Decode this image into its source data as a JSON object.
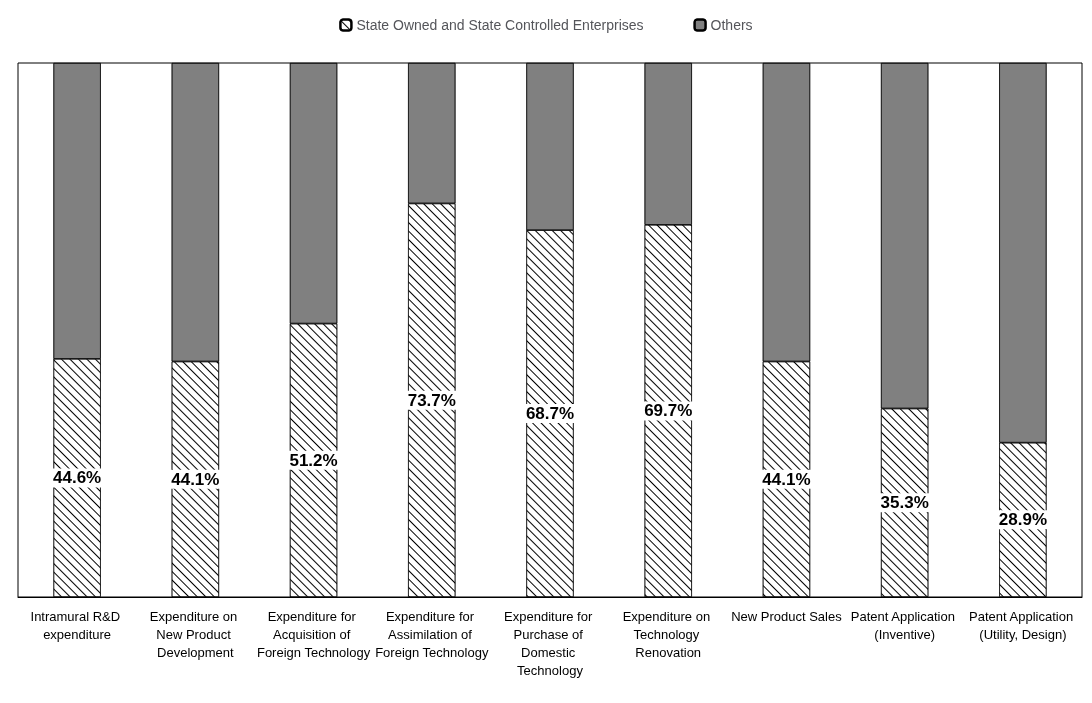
{
  "chart_data": {
    "type": "bar",
    "stacked": true,
    "legend": "top",
    "categories": [
      "Intramural R&D expenditure",
      "Expenditure on New Product Development",
      "Expenditure for Acquisition of Foreign Technology",
      "Expenditure for Assimilation of Foreign Technology",
      "Expenditure for Purchase of Domestic Technology",
      "Expenditure on Technology Renovation",
      "New Product Sales",
      "Patent Application (Inventive)",
      "Patent Application (Utility, Design)"
    ],
    "series": [
      {
        "name": "State Owned and State Controlled Enterprises",
        "color": "#ffffff",
        "values": [
          44.6,
          44.1,
          51.2,
          73.7,
          68.7,
          69.7,
          44.1,
          35.3,
          28.9
        ],
        "value_labels": [
          "44.6%",
          "44.1%",
          "51.2%",
          "73.7%",
          "68.7%",
          "69.7%",
          "44.1%",
          "35.3%",
          "28.9%"
        ]
      },
      {
        "name": "Others",
        "color": "#808080",
        "values": [
          55.4,
          55.9,
          48.8,
          26.3,
          31.3,
          30.3,
          55.9,
          64.7,
          71.1
        ]
      }
    ]
  }
}
